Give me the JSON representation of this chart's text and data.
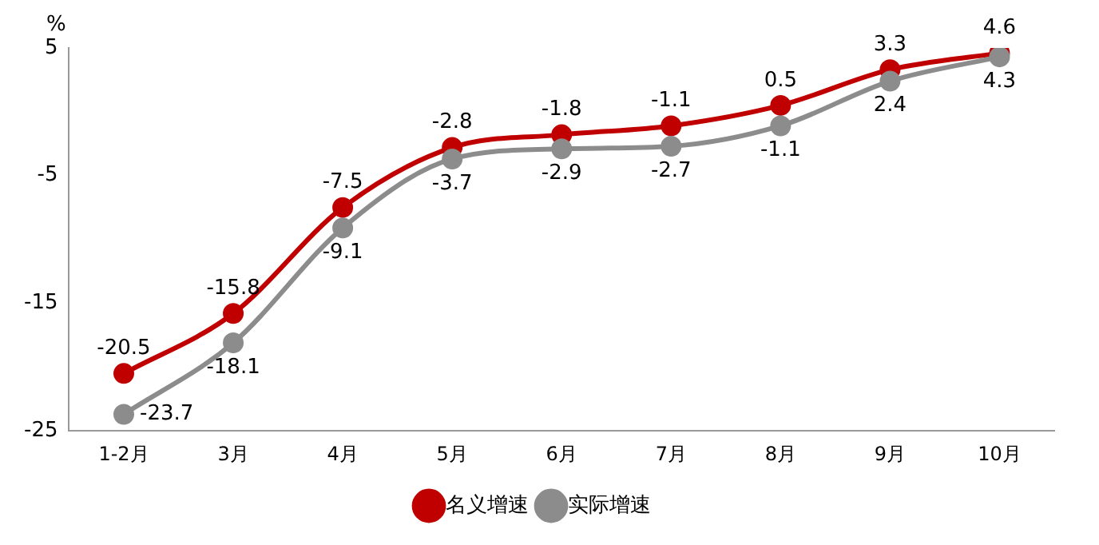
{
  "chart_data": {
    "type": "line",
    "ylabel": "%",
    "categories": [
      "1-2月",
      "3月",
      "4月",
      "5月",
      "6月",
      "7月",
      "8月",
      "9月",
      "10月"
    ],
    "series": [
      {
        "name": "名义增速",
        "color": "#c00000",
        "values": [
          -20.5,
          -15.8,
          -7.5,
          -2.8,
          -1.8,
          -1.1,
          0.5,
          3.3,
          4.6
        ]
      },
      {
        "name": "实际增速",
        "color": "#8c8c8c",
        "values": [
          -23.7,
          -18.1,
          -9.1,
          -3.7,
          -2.9,
          -2.7,
          -1.1,
          2.4,
          4.3
        ]
      }
    ],
    "ylim": [
      -25,
      5
    ],
    "yticks": [
      -25,
      -15,
      -5,
      5
    ],
    "grid": false,
    "legend": "bottom",
    "marker": "circle",
    "line_style": "solid",
    "data_labels": true
  }
}
